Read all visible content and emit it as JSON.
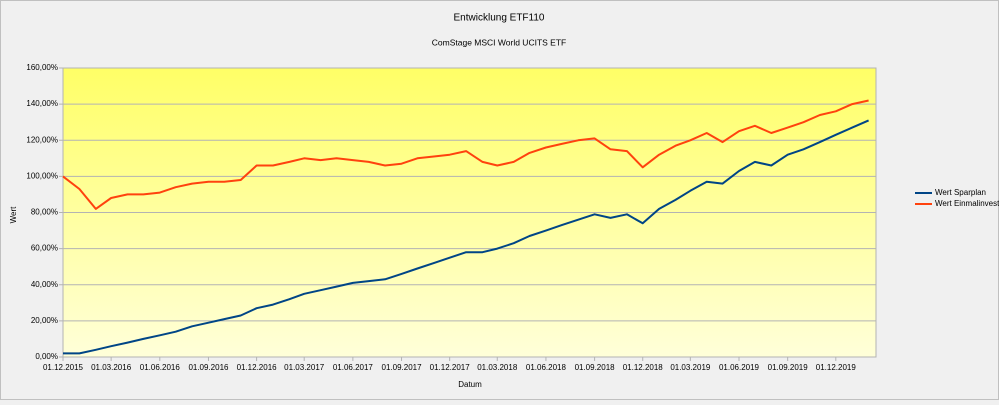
{
  "chart_data": {
    "type": "line",
    "title": "Entwicklung ETF110",
    "subtitle": "ComStage MSCI World UCITS ETF",
    "x_label": "Datum",
    "y_label": "Wert",
    "x": [
      "01.12.2015",
      "01.01.2016",
      "01.02.2016",
      "01.03.2016",
      "01.04.2016",
      "01.05.2016",
      "01.06.2016",
      "01.07.2016",
      "01.08.2016",
      "01.09.2016",
      "01.10.2016",
      "01.11.2016",
      "01.12.2016",
      "01.01.2017",
      "01.02.2017",
      "01.03.2017",
      "01.04.2017",
      "01.05.2017",
      "01.06.2017",
      "01.07.2017",
      "01.08.2017",
      "01.09.2017",
      "01.10.2017",
      "01.11.2017",
      "01.12.2017",
      "01.01.2018",
      "01.02.2018",
      "01.03.2018",
      "01.04.2018",
      "01.05.2018",
      "01.06.2018",
      "01.07.2018",
      "01.08.2018",
      "01.09.2018",
      "01.10.2018",
      "01.11.2018",
      "01.12.2018",
      "01.01.2019",
      "01.02.2019",
      "01.03.2019",
      "01.04.2019",
      "01.05.2019",
      "01.06.2019",
      "01.07.2019",
      "01.08.2019",
      "01.09.2019",
      "01.10.2019",
      "01.11.2019",
      "01.12.2019",
      "01.01.2020",
      "01.02.2020"
    ],
    "series": [
      {
        "name": "Wert Sparplan",
        "color": "#004586",
        "values": [
          2,
          2,
          4,
          6,
          8,
          10,
          12,
          14,
          17,
          19,
          21,
          23,
          27,
          29,
          32,
          35,
          37,
          39,
          41,
          42,
          43,
          46,
          49,
          52,
          55,
          58,
          58,
          60,
          63,
          67,
          70,
          73,
          76,
          79,
          77,
          79,
          74,
          82,
          87,
          92,
          97,
          96,
          103,
          108,
          106,
          112,
          115,
          119,
          123,
          127,
          131
        ]
      },
      {
        "name": "Wert Einmalinvest",
        "color": "#ff420e",
        "values": [
          100,
          93,
          82,
          88,
          90,
          90,
          91,
          94,
          96,
          97,
          97,
          98,
          106,
          106,
          108,
          110,
          109,
          110,
          109,
          108,
          106,
          107,
          110,
          111,
          112,
          114,
          108,
          106,
          108,
          113,
          116,
          118,
          120,
          121,
          115,
          114,
          105,
          112,
          117,
          120,
          124,
          119,
          125,
          128,
          124,
          127,
          130,
          134,
          136,
          140,
          142
        ]
      }
    ],
    "xlim": [
      "01.12.2015",
      "15.02.2020"
    ],
    "xticks": [
      "01.12.2015",
      "01.03.2016",
      "01.06.2016",
      "01.09.2016",
      "01.12.2016",
      "01.03.2017",
      "01.06.2017",
      "01.09.2017",
      "01.12.2017",
      "01.03.2018",
      "01.06.2018",
      "01.09.2018",
      "01.12.2018",
      "01.03.2019",
      "01.06.2019",
      "01.09.2019",
      "01.12.2019"
    ],
    "ylim": [
      0,
      160
    ],
    "yticks": [
      {
        "value": 0,
        "label": "0,00%"
      },
      {
        "value": 20,
        "label": "20,00%"
      },
      {
        "value": 40,
        "label": "40,00%"
      },
      {
        "value": 60,
        "label": "60,00%"
      },
      {
        "value": 80,
        "label": "80,00%"
      },
      {
        "value": 100,
        "label": "100,00%"
      },
      {
        "value": 120,
        "label": "120,00%"
      },
      {
        "value": 140,
        "label": "140,00%"
      },
      {
        "value": 160,
        "label": "160,00%"
      }
    ],
    "grid": true,
    "legend": "right"
  }
}
